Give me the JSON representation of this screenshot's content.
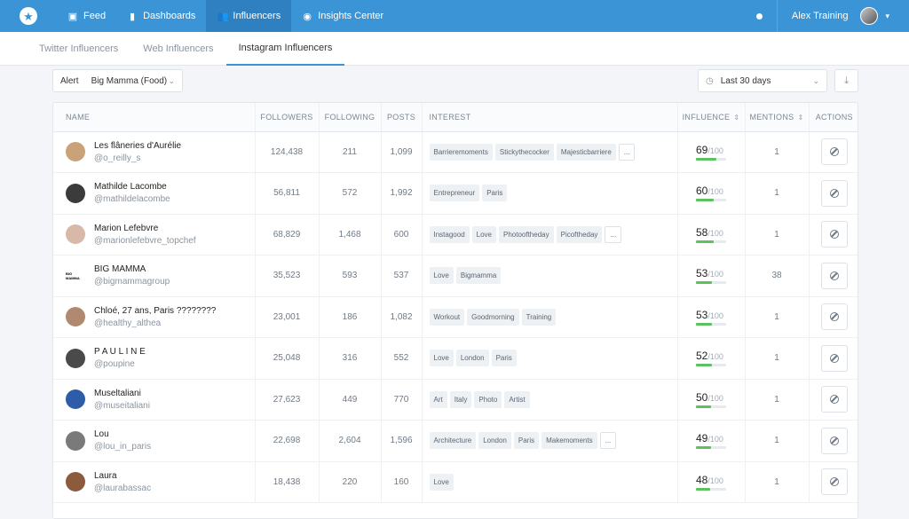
{
  "topbar": {
    "nav": [
      {
        "label": "Feed",
        "icon": "feed-icon",
        "glyph": "▣",
        "active": false
      },
      {
        "label": "Dashboards",
        "icon": "bar-chart-icon",
        "glyph": "▮",
        "active": false
      },
      {
        "label": "Influencers",
        "icon": "users-icon",
        "glyph": "👥",
        "active": true
      },
      {
        "label": "Insights Center",
        "icon": "compass-icon",
        "glyph": "◉",
        "active": false
      }
    ],
    "username": "Alex Training"
  },
  "tabs": [
    {
      "label": "Twitter Influencers",
      "active": false
    },
    {
      "label": "Web Influencers",
      "active": false
    },
    {
      "label": "Instagram Influencers",
      "active": true
    }
  ],
  "filters": {
    "alert_label": "Alert",
    "alert_value": "Big Mamma (Food)",
    "date_value": "Last 30 days"
  },
  "columns": {
    "name": "NAME",
    "followers": "FOLLOWERS",
    "following": "FOLLOWING",
    "posts": "POSTS",
    "interest": "INTEREST",
    "influence": "INFLUENCE",
    "mentions": "MENTIONS",
    "actions": "ACTIONS"
  },
  "influence_max": "/100",
  "rows": [
    {
      "name": "Les flâneries d'Aurélie",
      "handle": "@o_reilly_s",
      "followers": "124,438",
      "following": "211",
      "posts": "1,099",
      "tags": [
        "Barrieremoments",
        "Stickythecocker",
        "Majesticbarriere"
      ],
      "more": true,
      "influence": "69",
      "mentions": "1",
      "avatar_color": "#c9a27a"
    },
    {
      "name": "Mathilde Lacombe",
      "handle": "@mathildelacombe",
      "followers": "56,811",
      "following": "572",
      "posts": "1,992",
      "tags": [
        "Entrepreneur",
        "Paris"
      ],
      "more": false,
      "influence": "60",
      "mentions": "1",
      "avatar_color": "#3b3b3b"
    },
    {
      "name": "Marion Lefebvre",
      "handle": "@marionlefebvre_topchef",
      "followers": "68,829",
      "following": "1,468",
      "posts": "600",
      "tags": [
        "Instagood",
        "Love",
        "Photooftheday",
        "Picoftheday"
      ],
      "more": true,
      "influence": "58",
      "mentions": "1",
      "avatar_color": "#d8b8a8"
    },
    {
      "name": "BIG MAMMA",
      "handle": "@bigmammagroup",
      "followers": "35,523",
      "following": "593",
      "posts": "537",
      "tags": [
        "Love",
        "Bigmamma"
      ],
      "more": false,
      "influence": "53",
      "mentions": "38",
      "avatar_color": "#ffffff",
      "avatar_text": "BIG MAMMA"
    },
    {
      "name": "Chloé, 27 ans, Paris ????????",
      "handle": "@healthy_althea",
      "followers": "23,001",
      "following": "186",
      "posts": "1,082",
      "tags": [
        "Workout",
        "Goodmorning",
        "Training"
      ],
      "more": false,
      "influence": "53",
      "mentions": "1",
      "avatar_color": "#b08a70"
    },
    {
      "name": "P A U L I N E",
      "handle": "@poupine",
      "followers": "25,048",
      "following": "316",
      "posts": "552",
      "tags": [
        "Love",
        "London",
        "Paris"
      ],
      "more": false,
      "influence": "52",
      "mentions": "1",
      "avatar_color": "#4a4a4a"
    },
    {
      "name": "Museltaliani",
      "handle": "@museitaliani",
      "followers": "27,623",
      "following": "449",
      "posts": "770",
      "tags": [
        "Art",
        "Italy",
        "Photo",
        "Artist"
      ],
      "more": false,
      "influence": "50",
      "mentions": "1",
      "avatar_color": "#2f5ca8"
    },
    {
      "name": "Lou",
      "handle": "@lou_in_paris",
      "followers": "22,698",
      "following": "2,604",
      "posts": "1,596",
      "tags": [
        "Architecture",
        "London",
        "Paris",
        "Makemoments"
      ],
      "more": true,
      "influence": "49",
      "mentions": "1",
      "avatar_color": "#7a7a7a"
    },
    {
      "name": "Laura",
      "handle": "@laurabassac",
      "followers": "18,438",
      "following": "220",
      "posts": "160",
      "tags": [
        "Love"
      ],
      "more": false,
      "influence": "48",
      "mentions": "1",
      "avatar_color": "#8c5a3c"
    }
  ],
  "more_label": "...",
  "colors": {
    "accent": "#3a94d6",
    "bar_fill": "#5cc15f"
  }
}
